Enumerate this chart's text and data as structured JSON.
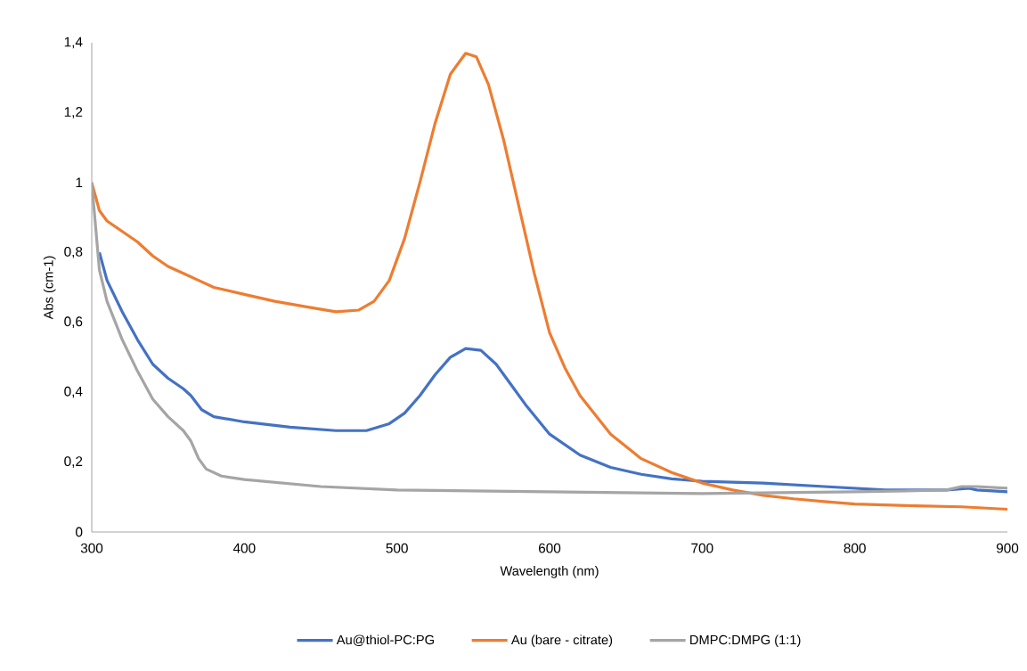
{
  "chart_data": {
    "type": "line",
    "xlabel": "Wavelength (nm)",
    "ylabel": "Abs (cm-1)",
    "xlim": [
      300,
      900
    ],
    "xticks": [
      300,
      400,
      500,
      600,
      700,
      800,
      900
    ],
    "ylim": [
      0,
      1.4
    ],
    "yticks": [
      0,
      {
        "value": 0.2,
        "label": "0,2"
      },
      {
        "value": 0.4,
        "label": "0,4"
      },
      {
        "value": 0.6,
        "label": "0,6"
      },
      {
        "value": 0.8,
        "label": "0,8"
      },
      1,
      {
        "value": 1.2,
        "label": "1,2"
      },
      {
        "value": 1.4,
        "label": "1,4"
      }
    ],
    "legend": "bottom",
    "marker": "none",
    "line_style": "solid",
    "series": [
      {
        "name": "Au@thiol-PC:PG",
        "color": "#4472c4",
        "x": [
          305,
          310,
          320,
          330,
          340,
          350,
          360,
          365,
          372,
          380,
          400,
          430,
          460,
          480,
          495,
          505,
          515,
          525,
          535,
          545,
          555,
          565,
          575,
          585,
          600,
          620,
          640,
          660,
          680,
          700,
          740,
          780,
          820,
          860,
          875,
          880,
          900
        ],
        "values": [
          0.8,
          0.72,
          0.63,
          0.55,
          0.48,
          0.44,
          0.41,
          0.39,
          0.35,
          0.33,
          0.315,
          0.3,
          0.29,
          0.29,
          0.31,
          0.34,
          0.39,
          0.45,
          0.5,
          0.525,
          0.52,
          0.48,
          0.42,
          0.36,
          0.28,
          0.22,
          0.185,
          0.165,
          0.152,
          0.145,
          0.14,
          0.13,
          0.12,
          0.12,
          0.125,
          0.12,
          0.115
        ]
      },
      {
        "name": "Au (bare - citrate)",
        "color": "#ed7d31",
        "x": [
          300,
          305,
          310,
          320,
          330,
          340,
          350,
          360,
          370,
          380,
          400,
          420,
          440,
          460,
          475,
          485,
          495,
          505,
          515,
          525,
          535,
          545,
          552,
          560,
          570,
          580,
          590,
          600,
          610,
          620,
          640,
          660,
          680,
          700,
          720,
          740,
          760,
          780,
          800,
          840,
          870,
          900
        ],
        "values": [
          1.0,
          0.92,
          0.89,
          0.86,
          0.83,
          0.79,
          0.76,
          0.74,
          0.72,
          0.7,
          0.68,
          0.66,
          0.645,
          0.63,
          0.635,
          0.66,
          0.72,
          0.84,
          1.0,
          1.17,
          1.31,
          1.37,
          1.36,
          1.28,
          1.12,
          0.93,
          0.74,
          0.57,
          0.47,
          0.39,
          0.28,
          0.21,
          0.17,
          0.14,
          0.12,
          0.105,
          0.095,
          0.087,
          0.08,
          0.075,
          0.072,
          0.065
        ]
      },
      {
        "name": "DMPC:DMPG (1:1)",
        "color": "#a5a5a5",
        "x": [
          300,
          305,
          310,
          320,
          330,
          340,
          350,
          360,
          365,
          370,
          375,
          385,
          400,
          450,
          500,
          600,
          700,
          800,
          860,
          870,
          880,
          900
        ],
        "values": [
          1.0,
          0.75,
          0.66,
          0.55,
          0.46,
          0.38,
          0.33,
          0.29,
          0.26,
          0.21,
          0.18,
          0.16,
          0.15,
          0.13,
          0.12,
          0.115,
          0.11,
          0.115,
          0.12,
          0.13,
          0.13,
          0.125
        ]
      }
    ]
  }
}
